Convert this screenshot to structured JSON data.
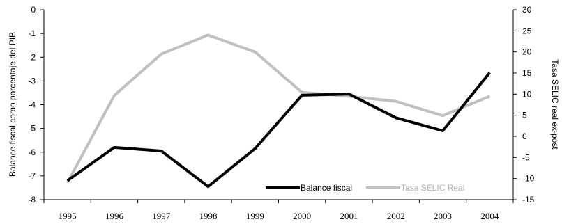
{
  "chart_data": {
    "type": "line",
    "categories": [
      "1995",
      "1996",
      "1997",
      "1998",
      "1999",
      "2000",
      "2001",
      "2002",
      "2003",
      "2004"
    ],
    "series": [
      {
        "name": "Balance fiscal",
        "axis": "left",
        "color": "#000000",
        "values": [
          -7.2,
          -5.8,
          -5.95,
          -7.45,
          -5.85,
          -3.6,
          -3.55,
          -4.55,
          -5.1,
          -2.65
        ]
      },
      {
        "name": "Tasa SELIC Real",
        "axis": "right",
        "color": "#c0c0c0",
        "values": [
          -11,
          9.7,
          19.5,
          24,
          20,
          10.4,
          9.5,
          8.3,
          4.9,
          9.5
        ]
      }
    ],
    "ylabel_left": "Balance fiscal como porcentaje del PIB",
    "ylabel_right": "Tasa SELIC real ex-post",
    "ylim_left": [
      -8,
      0
    ],
    "ylim_right": [
      -15,
      30
    ],
    "yticks_left": [
      "0",
      "-1",
      "-2",
      "-3",
      "-4",
      "-5",
      "-6",
      "-7",
      "-8"
    ],
    "yticks_right": [
      "30",
      "25",
      "20",
      "15",
      "10",
      "5",
      "0",
      "-5",
      "-10",
      "-15"
    ],
    "legend": {
      "position": "bottom-right",
      "items": [
        "Balance fiscal",
        "Tasa SELIC Real"
      ]
    },
    "grid": false
  }
}
